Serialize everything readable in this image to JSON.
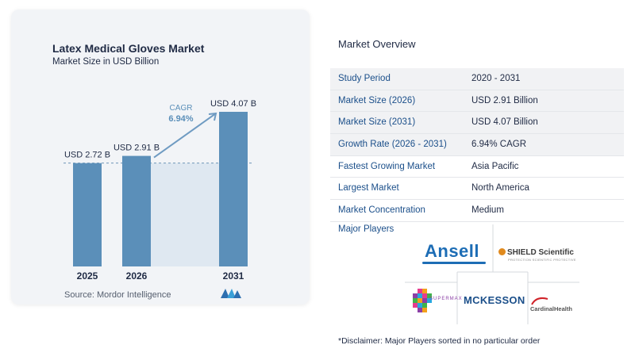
{
  "chart_data": {
    "type": "bar",
    "title": "Latex Medical Gloves Market",
    "subtitle": "Market Size in USD Billion",
    "categories": [
      "2025",
      "2026",
      "2031"
    ],
    "values": [
      2.72,
      2.91,
      4.07
    ],
    "data_labels": [
      "USD 2.72 B",
      "USD 2.91 B",
      "USD 4.07 B"
    ],
    "ylim": [
      0,
      4.07
    ],
    "grid": false,
    "annotation": {
      "label": "CAGR",
      "value": "6.94%"
    },
    "colors": {
      "bar": "#5b8fb9",
      "bar_top": "#6a9cc4",
      "band": "#dfe8f1",
      "dashed_line": "#6f95b8",
      "arrow": "#6f9bc2"
    }
  },
  "source": "Source:  Mordor Intelligence",
  "overview": {
    "title": "Market Overview",
    "rows": [
      {
        "label": "Study Period",
        "value": "2020 - 2031"
      },
      {
        "label": "Market Size (2026)",
        "value": "USD 2.91 Billion"
      },
      {
        "label": "Market Size (2031)",
        "value": "USD 4.07 Billion"
      },
      {
        "label": "Growth Rate (2026 - 2031)",
        "value": "6.94% CAGR"
      },
      {
        "label": "Fastest Growing Market",
        "value": "Asia Pacific"
      },
      {
        "label": "Largest Market",
        "value": "North America"
      },
      {
        "label": "Market Concentration",
        "value": "Medium"
      }
    ]
  },
  "players": {
    "title": "Major Players",
    "ansell": "Ansell",
    "shield": "SHIELD Scientific",
    "shield_tagline": "PROTECTION SCIENTIFIC PROTECTIVE",
    "mckesson": "MCKESSON",
    "cardinal": "CardinalHealth",
    "mosaic": "SUPERMAX"
  },
  "disclaimer": "*Disclaimer: Major Players sorted in no particular order"
}
